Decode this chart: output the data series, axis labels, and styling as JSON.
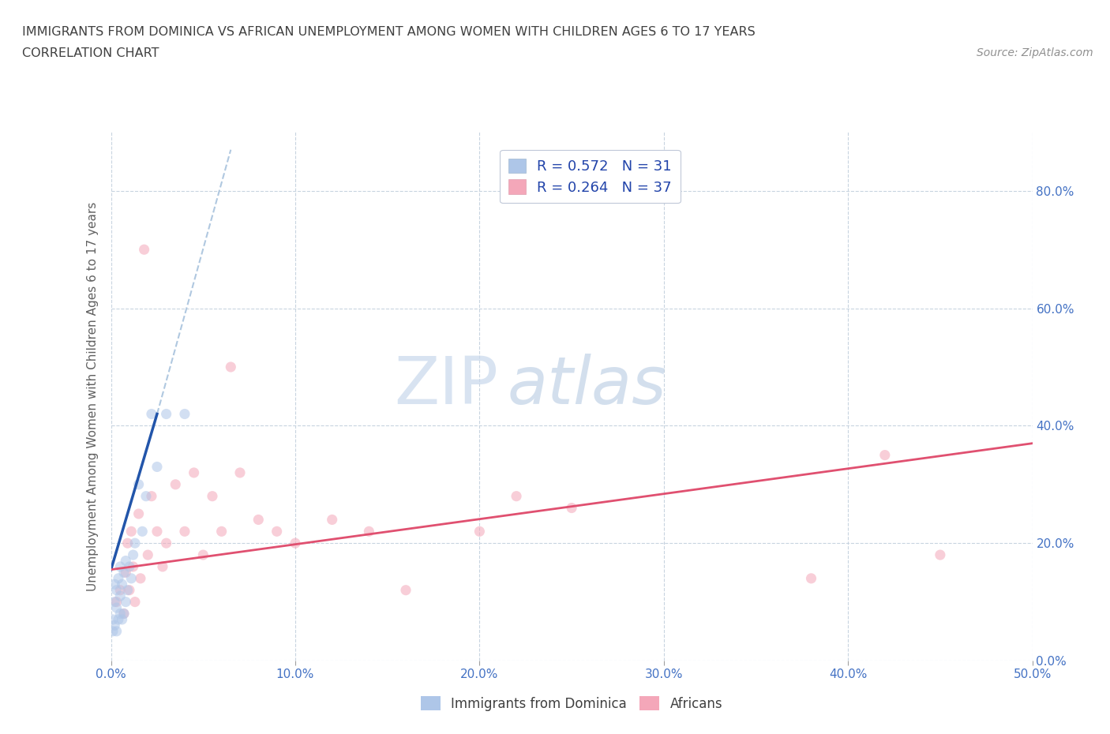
{
  "title_line1": "IMMIGRANTS FROM DOMINICA VS AFRICAN UNEMPLOYMENT AMONG WOMEN WITH CHILDREN AGES 6 TO 17 YEARS",
  "title_line2": "CORRELATION CHART",
  "source_text": "Source: ZipAtlas.com",
  "ylabel": "Unemployment Among Women with Children Ages 6 to 17 years",
  "xlim": [
    0.0,
    0.5
  ],
  "ylim": [
    0.0,
    0.9
  ],
  "xtick_labels": [
    "0.0%",
    "10.0%",
    "20.0%",
    "30.0%",
    "40.0%",
    "50.0%"
  ],
  "xtick_values": [
    0.0,
    0.1,
    0.2,
    0.3,
    0.4,
    0.5
  ],
  "ytick_labels": [
    "0.0%",
    "20.0%",
    "40.0%",
    "60.0%",
    "80.0%"
  ],
  "ytick_values": [
    0.0,
    0.2,
    0.4,
    0.6,
    0.8
  ],
  "legend_entries": [
    {
      "label": "R = 0.572   N = 31",
      "color": "#aec6e8"
    },
    {
      "label": "R = 0.264   N = 37",
      "color": "#f4a7b9"
    }
  ],
  "blue_scatter_x": [
    0.001,
    0.001,
    0.002,
    0.002,
    0.002,
    0.003,
    0.003,
    0.003,
    0.004,
    0.004,
    0.005,
    0.005,
    0.005,
    0.006,
    0.006,
    0.007,
    0.007,
    0.008,
    0.008,
    0.009,
    0.01,
    0.011,
    0.012,
    0.013,
    0.015,
    0.017,
    0.019,
    0.022,
    0.025,
    0.03,
    0.04
  ],
  "blue_scatter_y": [
    0.05,
    0.07,
    0.06,
    0.1,
    0.13,
    0.05,
    0.09,
    0.12,
    0.07,
    0.14,
    0.08,
    0.11,
    0.16,
    0.07,
    0.13,
    0.08,
    0.15,
    0.1,
    0.17,
    0.12,
    0.16,
    0.14,
    0.18,
    0.2,
    0.3,
    0.22,
    0.28,
    0.42,
    0.33,
    0.42,
    0.42
  ],
  "pink_scatter_x": [
    0.003,
    0.005,
    0.007,
    0.008,
    0.009,
    0.01,
    0.011,
    0.012,
    0.013,
    0.015,
    0.016,
    0.018,
    0.02,
    0.022,
    0.025,
    0.028,
    0.03,
    0.035,
    0.04,
    0.045,
    0.05,
    0.055,
    0.06,
    0.065,
    0.07,
    0.08,
    0.09,
    0.1,
    0.12,
    0.14,
    0.16,
    0.2,
    0.22,
    0.25,
    0.38,
    0.42,
    0.45
  ],
  "pink_scatter_y": [
    0.1,
    0.12,
    0.08,
    0.15,
    0.2,
    0.12,
    0.22,
    0.16,
    0.1,
    0.25,
    0.14,
    0.7,
    0.18,
    0.28,
    0.22,
    0.16,
    0.2,
    0.3,
    0.22,
    0.32,
    0.18,
    0.28,
    0.22,
    0.5,
    0.32,
    0.24,
    0.22,
    0.2,
    0.24,
    0.22,
    0.12,
    0.22,
    0.28,
    0.26,
    0.14,
    0.35,
    0.18
  ],
  "blue_solid_line_x": [
    0.0,
    0.025
  ],
  "blue_solid_line_y": [
    0.155,
    0.42
  ],
  "blue_dash_line_x": [
    0.025,
    0.065
  ],
  "blue_dash_line_y": [
    0.42,
    0.87
  ],
  "pink_line_x": [
    0.0,
    0.5
  ],
  "pink_line_y": [
    0.155,
    0.37
  ],
  "blue_scatter_color": "#aec6e8",
  "pink_scatter_color": "#f4a7b9",
  "blue_line_color": "#2255aa",
  "pink_line_color": "#e05070",
  "blue_dash_color": "#b0c8e0",
  "background_color": "#ffffff",
  "grid_color": "#c8d4e0",
  "title_color": "#404040",
  "right_axis_color": "#4472c4",
  "bottom_axis_color": "#4472c4",
  "scatter_size": 90,
  "scatter_alpha": 0.55,
  "watermark_zip_color": "#c8d8ec",
  "watermark_atlas_color": "#a0b8d4"
}
